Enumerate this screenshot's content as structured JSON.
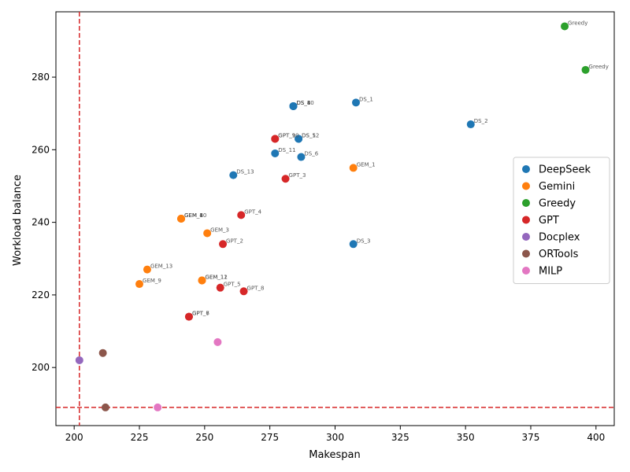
{
  "chart_data": {
    "type": "scatter",
    "title": "",
    "xlabel": "Makespan",
    "ylabel": "Workload balance",
    "xlim": [
      193,
      407
    ],
    "ylim": [
      184,
      298
    ],
    "xticks": [
      200,
      225,
      250,
      275,
      300,
      325,
      350,
      375,
      400
    ],
    "yticks": [
      200,
      220,
      240,
      260,
      280
    ],
    "grid": false,
    "legend_position": "center-right",
    "reference_lines": {
      "vertical_x": 202,
      "horizontal_y": 189,
      "color": "#d62728",
      "style": "dashed"
    },
    "series": [
      {
        "name": "DeepSeek",
        "color": "#1f77b4",
        "points": [
          {
            "x": 308,
            "y": 273,
            "label": "DS_1"
          },
          {
            "x": 352,
            "y": 267,
            "label": "DS_2"
          },
          {
            "x": 307,
            "y": 234,
            "label": "DS_3"
          },
          {
            "x": 284,
            "y": 272,
            "label": "DS_4"
          },
          {
            "x": 286,
            "y": 263,
            "label": "DS_5"
          },
          {
            "x": 287,
            "y": 258,
            "label": "DS_6"
          },
          {
            "x": 284,
            "y": 272,
            "label": "DS_8"
          },
          {
            "x": 284,
            "y": 272,
            "label": "DS_10"
          },
          {
            "x": 277,
            "y": 259,
            "label": "DS_11"
          },
          {
            "x": 286,
            "y": 263,
            "label": "DS_12"
          },
          {
            "x": 261,
            "y": 253,
            "label": "DS_13"
          }
        ]
      },
      {
        "name": "Gemini",
        "color": "#ff7f0e",
        "points": [
          {
            "x": 307,
            "y": 255,
            "label": "GEM_1"
          },
          {
            "x": 251,
            "y": 237,
            "label": "GEM_3"
          },
          {
            "x": 241,
            "y": 241,
            "label": "GEM_4"
          },
          {
            "x": 241,
            "y": 241,
            "label": "GEM_8"
          },
          {
            "x": 225,
            "y": 223,
            "label": "GEM_9"
          },
          {
            "x": 241,
            "y": 241,
            "label": "GEM_10"
          },
          {
            "x": 249,
            "y": 224,
            "label": "GEM_11"
          },
          {
            "x": 249,
            "y": 224,
            "label": "GEM_12"
          },
          {
            "x": 228,
            "y": 227,
            "label": "GEM_13"
          }
        ]
      },
      {
        "name": "Greedy",
        "color": "#2ca02c",
        "points": [
          {
            "x": 388,
            "y": 294,
            "label": "Greedy"
          },
          {
            "x": 396,
            "y": 282,
            "label": "Greedy"
          }
        ]
      },
      {
        "name": "GPT",
        "color": "#d62728",
        "points": [
          {
            "x": 257,
            "y": 234,
            "label": "GPT_2"
          },
          {
            "x": 281,
            "y": 252,
            "label": "GPT_3"
          },
          {
            "x": 264,
            "y": 242,
            "label": "GPT_4"
          },
          {
            "x": 256,
            "y": 222,
            "label": "GPT_5"
          },
          {
            "x": 244,
            "y": 214,
            "label": "GPT_6"
          },
          {
            "x": 244,
            "y": 214,
            "label": "GPT_7"
          },
          {
            "x": 265,
            "y": 221,
            "label": "GPT_8"
          },
          {
            "x": 277,
            "y": 263,
            "label": "GPT_9"
          },
          {
            "x": 277,
            "y": 263,
            "label": "GPT_10"
          }
        ]
      },
      {
        "name": "Docplex",
        "color": "#9467bd",
        "points": [
          {
            "x": 202,
            "y": 202,
            "label": ""
          }
        ]
      },
      {
        "name": "ORTools",
        "color": "#8c564b",
        "points": [
          {
            "x": 211,
            "y": 204,
            "label": ""
          },
          {
            "x": 212,
            "y": 189,
            "label": ""
          }
        ]
      },
      {
        "name": "MILP",
        "color": "#e377c2",
        "points": [
          {
            "x": 255,
            "y": 207,
            "label": ""
          },
          {
            "x": 232,
            "y": 189,
            "label": ""
          }
        ]
      }
    ]
  }
}
